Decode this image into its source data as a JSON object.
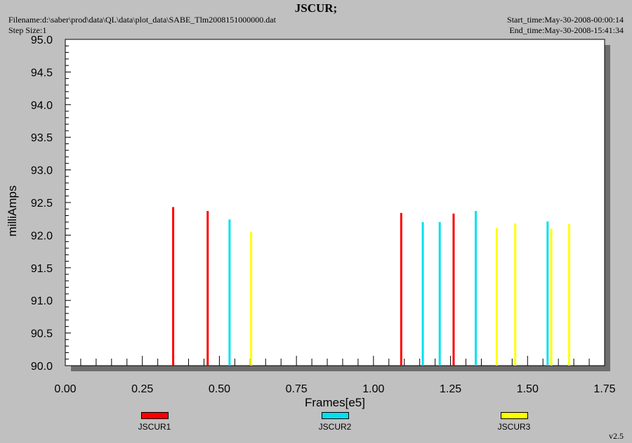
{
  "header": {
    "title": "JSCUR;",
    "filename": "Filename:d:\\saber\\prod\\data\\QL\\data\\plot_data\\SABE_Tlm2008151000000.dat",
    "step_size": "Step Size:1",
    "start_time": "Start_time:May-30-2008-00:00:14",
    "end_time": "End_time:May-30-2008-15:41:34"
  },
  "version": "v2.5",
  "chart_data": {
    "type": "bar",
    "xlabel": "Frames[e5]",
    "ylabel": "milliAmps",
    "xlim": [
      0.0,
      1.75
    ],
    "ylim": [
      90.0,
      95.0
    ],
    "xticks": [
      "0.00",
      "0.25",
      "0.50",
      "0.75",
      "1.00",
      "1.25",
      "1.50",
      "1.75"
    ],
    "yticks": [
      "90.0",
      "90.5",
      "91.0",
      "91.5",
      "92.0",
      "92.5",
      "93.0",
      "93.5",
      "94.0",
      "94.5",
      "95.0"
    ],
    "grid": false,
    "legend_position": "bottom",
    "series": [
      {
        "name": "JSCUR1",
        "color": "#ff0000",
        "x": [
          0.35,
          0.462,
          1.09,
          1.26
        ],
        "values": [
          92.43,
          92.37,
          92.34,
          92.33
        ]
      },
      {
        "name": "JSCUR2",
        "color": "#00e0f0",
        "x": [
          0.533,
          1.16,
          1.215,
          1.332,
          1.565
        ],
        "values": [
          92.24,
          92.2,
          92.2,
          92.37,
          92.21
        ]
      },
      {
        "name": "JSCUR3",
        "color": "#ffff00",
        "x": [
          0.603,
          1.4,
          1.46,
          1.577,
          1.635
        ],
        "values": [
          92.05,
          92.11,
          92.18,
          92.1,
          92.17
        ]
      }
    ]
  }
}
